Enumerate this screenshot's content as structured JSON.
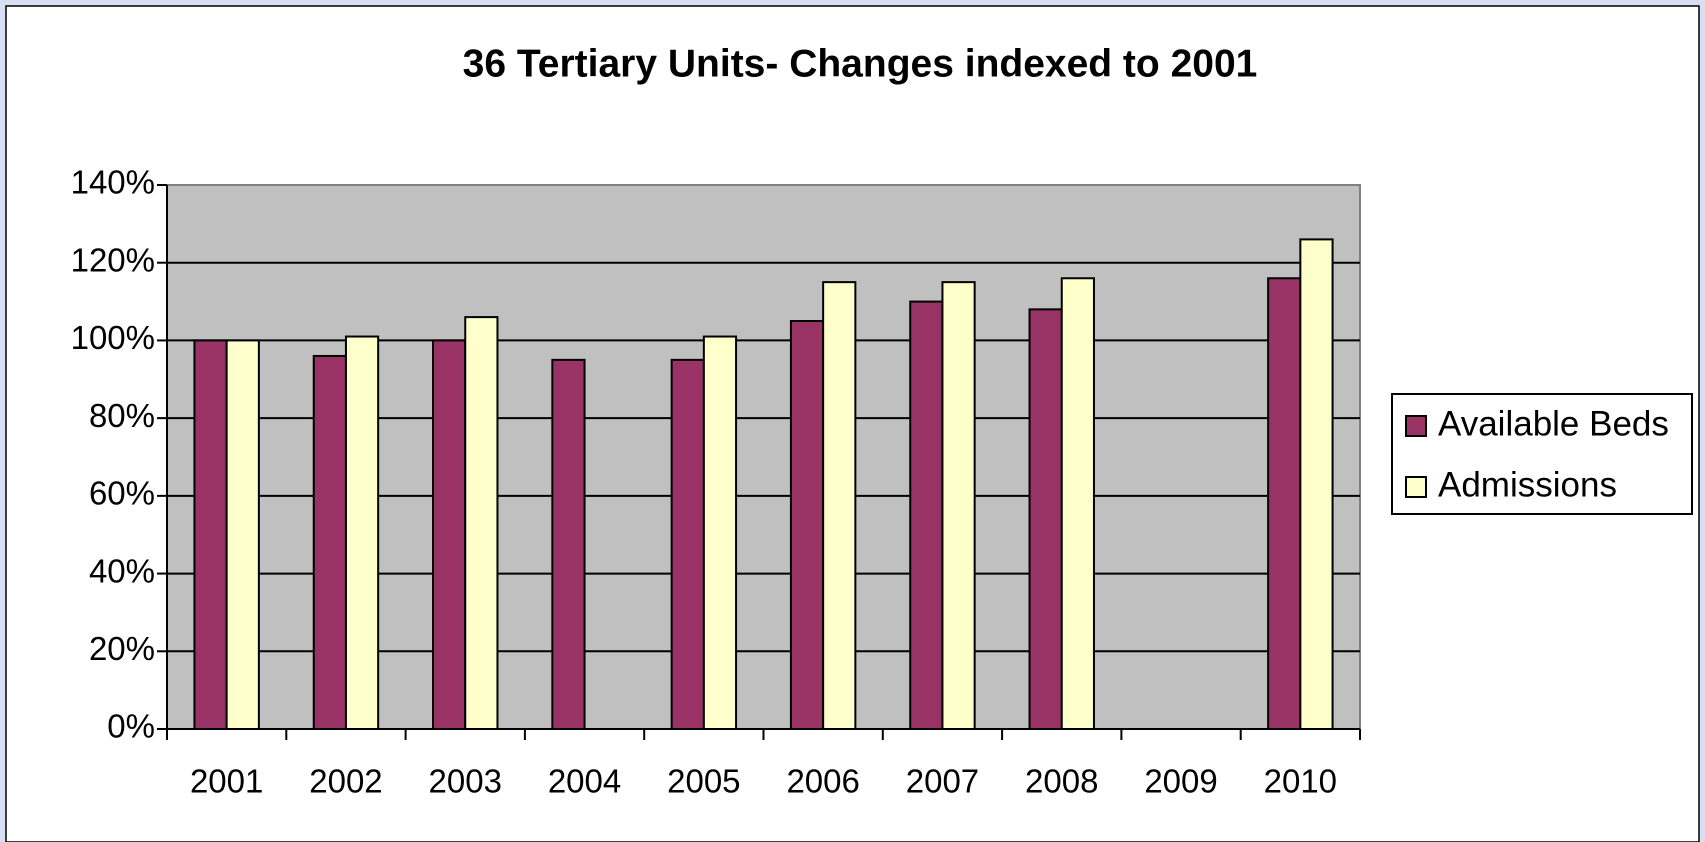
{
  "chart_data": {
    "type": "bar",
    "title": "36 Tertiary Units- Changes indexed to 2001",
    "categories": [
      "2001",
      "2002",
      "2003",
      "2004",
      "2005",
      "2006",
      "2007",
      "2008",
      "2009",
      "2010"
    ],
    "series": [
      {
        "name": "Available Beds",
        "color": "#993366",
        "values": [
          100,
          96,
          100,
          95,
          95,
          105,
          110,
          108,
          null,
          116
        ]
      },
      {
        "name": "Admissions",
        "color": "#ffffcc",
        "values": [
          100,
          101,
          106,
          null,
          101,
          115,
          115,
          116,
          null,
          126
        ]
      }
    ],
    "ylim": [
      0,
      140
    ],
    "yticks": [
      {
        "value": 0,
        "label": "0%"
      },
      {
        "value": 20,
        "label": "20%"
      },
      {
        "value": 40,
        "label": "40%"
      },
      {
        "value": 60,
        "label": "60%"
      },
      {
        "value": 80,
        "label": "80%"
      },
      {
        "value": 100,
        "label": "100%"
      },
      {
        "value": 120,
        "label": "120%"
      },
      {
        "value": 140,
        "label": "140%"
      }
    ],
    "grid": true,
    "legend": "right"
  }
}
